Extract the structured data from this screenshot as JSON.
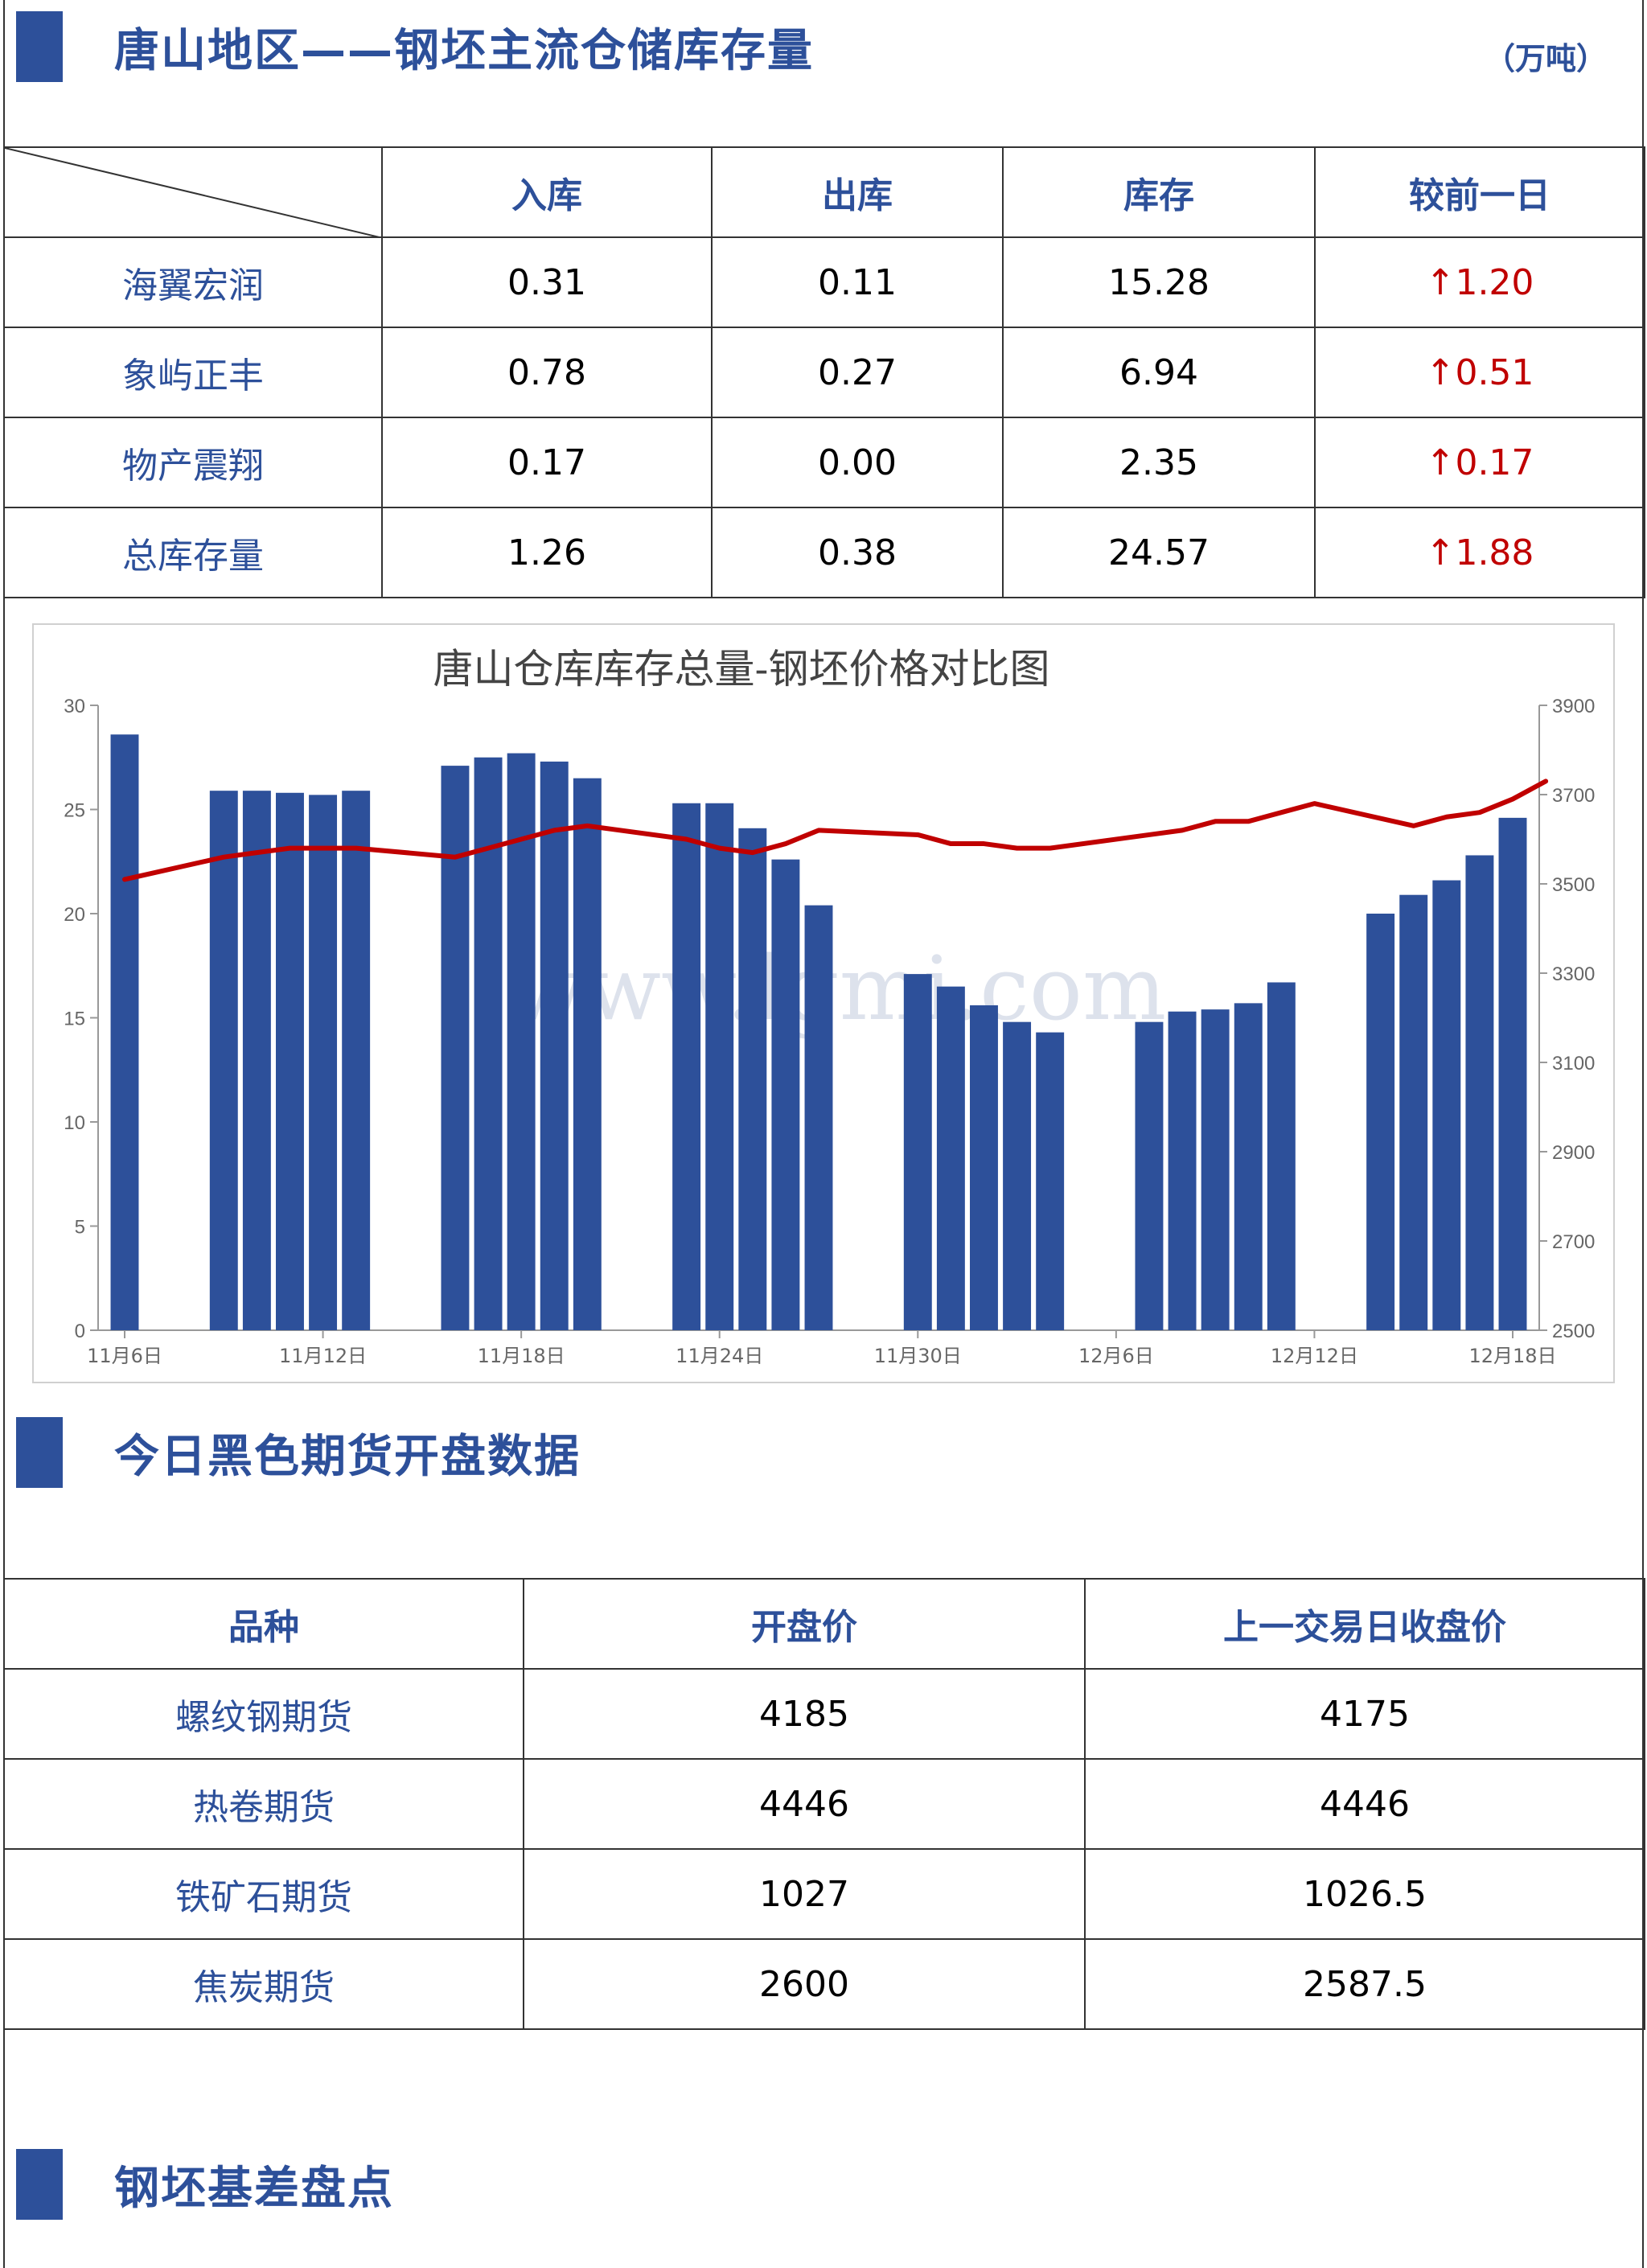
{
  "section1": {
    "title": "唐山地区——钢坯主流仓储库存量",
    "unit": "（万吨）",
    "headers": [
      "入库",
      "出库",
      "库存",
      "较前一日"
    ],
    "rows": [
      {
        "name": "海翼宏润",
        "in": "0.31",
        "out": "0.11",
        "stock": "15.28",
        "change": "↑1.20"
      },
      {
        "name": "象屿正丰",
        "in": "0.78",
        "out": "0.27",
        "stock": "6.94",
        "change": "↑0.51"
      },
      {
        "name": "物产震翔",
        "in": "0.17",
        "out": "0.00",
        "stock": "2.35",
        "change": "↑0.17"
      },
      {
        "name": "总库存量",
        "in": "1.26",
        "out": "0.38",
        "stock": "24.57",
        "change": "↑1.88"
      }
    ]
  },
  "chart_data": {
    "type": "bar",
    "title": "唐山仓库库存总量-钢坯价格对比图",
    "watermark": "www.lgmi.com",
    "x_tick_labels": [
      "11月6日",
      "11月12日",
      "11月18日",
      "11月24日",
      "11月30日",
      "12月6日",
      "12月12日",
      "12月18日"
    ],
    "y_left": {
      "min": 0,
      "max": 30,
      "ticks": [
        0,
        5,
        10,
        15,
        20,
        25,
        30
      ]
    },
    "y_right": {
      "min": 2500,
      "max": 3900,
      "ticks": [
        2500,
        2700,
        2900,
        3100,
        3300,
        3500,
        3700,
        3900
      ]
    },
    "x_start": "11月6日",
    "x_end": "12月18日",
    "series": [
      {
        "type": "bar",
        "axis": "left",
        "color": "#2d509a",
        "points": [
          [
            "11月6日",
            28.6
          ],
          [
            "11月9日",
            25.9
          ],
          [
            "11月10日",
            25.9
          ],
          [
            "11月11日",
            25.8
          ],
          [
            "11月12日",
            25.7
          ],
          [
            "11月13日",
            25.9
          ],
          [
            "11月16日",
            27.1
          ],
          [
            "11月17日",
            27.5
          ],
          [
            "11月18日",
            27.7
          ],
          [
            "11月19日",
            27.3
          ],
          [
            "11月20日",
            26.5
          ],
          [
            "11月23日",
            25.3
          ],
          [
            "11月24日",
            25.3
          ],
          [
            "11月25日",
            24.1
          ],
          [
            "11月26日",
            22.6
          ],
          [
            "11月27日",
            20.4
          ],
          [
            "11月30日",
            17.1
          ],
          [
            "12月1日",
            16.5
          ],
          [
            "12月2日",
            15.6
          ],
          [
            "12月3日",
            14.8
          ],
          [
            "12月4日",
            14.3
          ],
          [
            "12月7日",
            14.8
          ],
          [
            "12月8日",
            15.3
          ],
          [
            "12月9日",
            15.4
          ],
          [
            "12月10日",
            15.7
          ],
          [
            "12月11日",
            16.7
          ],
          [
            "12月14日",
            20.0
          ],
          [
            "12月15日",
            20.9
          ],
          [
            "12月16日",
            21.6
          ],
          [
            "12月17日",
            22.8
          ],
          [
            "12月18日",
            24.6
          ]
        ]
      },
      {
        "type": "line",
        "axis": "right",
        "color": "#c00000",
        "points": [
          [
            "11月6日",
            3510
          ],
          [
            "11月9日",
            3560
          ],
          [
            "11月10日",
            3570
          ],
          [
            "11月11日",
            3580
          ],
          [
            "11月12日",
            3580
          ],
          [
            "11月13日",
            3580
          ],
          [
            "11月16日",
            3560
          ],
          [
            "11月17日",
            3580
          ],
          [
            "11月18日",
            3600
          ],
          [
            "11月19日",
            3620
          ],
          [
            "11月20日",
            3630
          ],
          [
            "11月23日",
            3600
          ],
          [
            "11月24日",
            3580
          ],
          [
            "11月25日",
            3570
          ],
          [
            "11月26日",
            3590
          ],
          [
            "11月27日",
            3620
          ],
          [
            "11月30日",
            3610
          ],
          [
            "12月1日",
            3590
          ],
          [
            "12月2日",
            3590
          ],
          [
            "12月3日",
            3580
          ],
          [
            "12月4日",
            3580
          ],
          [
            "12月7日",
            3610
          ],
          [
            "12月8日",
            3620
          ],
          [
            "12月9日",
            3640
          ],
          [
            "12月10日",
            3640
          ],
          [
            "12月11日",
            3660
          ],
          [
            "12月12日",
            3680
          ],
          [
            "12月15日",
            3630
          ],
          [
            "12月16日",
            3650
          ],
          [
            "12月17日",
            3660
          ],
          [
            "12月18日",
            3690
          ],
          [
            "12月19日",
            3730
          ]
        ]
      }
    ]
  },
  "section2": {
    "title": "今日黑色期货开盘数据",
    "headers": [
      "品种",
      "开盘价",
      "上一交易日收盘价"
    ],
    "rows": [
      {
        "name": "螺纹钢期货",
        "open": "4185",
        "prev": "4175"
      },
      {
        "name": "热卷期货",
        "open": "4446",
        "prev": "4446"
      },
      {
        "name": "铁矿石期货",
        "open": "1027",
        "prev": "1026.5"
      },
      {
        "name": "焦炭期货",
        "open": "2600",
        "prev": "2587.5"
      }
    ]
  },
  "section3": {
    "title": "钢坯基差盘点"
  }
}
